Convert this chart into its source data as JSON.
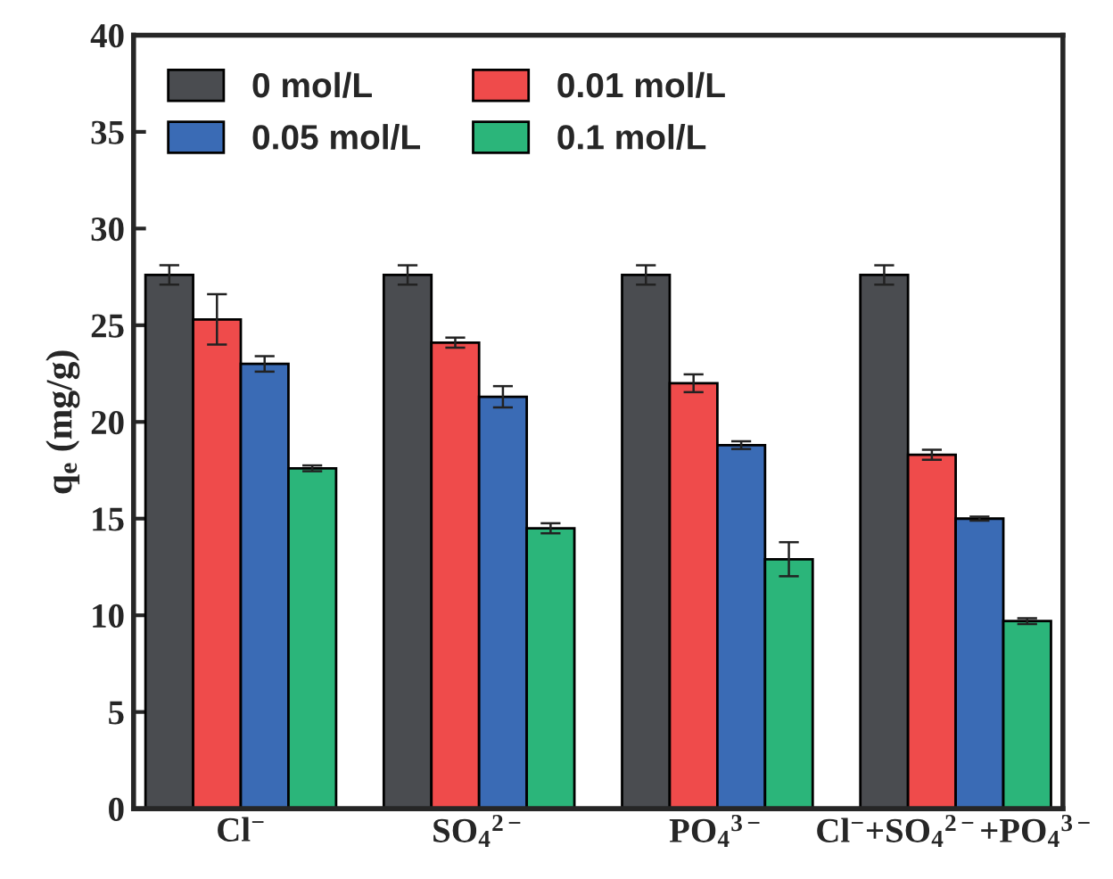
{
  "chart_data": {
    "type": "bar",
    "ylabel": "q$_{e}$ (mg/g)",
    "categories": [
      "Cl$^{−}$",
      "SO$_{4}$$^{2−}$",
      "PO$_{4}$$^{3−}$",
      "Cl$^{−}$+SO$_{4}$$^{2−}$+PO$_{4}$$^{3−}$"
    ],
    "series": [
      {
        "name": "0 mol/L",
        "color": "#4a4c50",
        "values": [
          27.6,
          27.6,
          27.6,
          27.6
        ],
        "errors": [
          0.5,
          0.5,
          0.5,
          0.5
        ]
      },
      {
        "name": "0.01 mol/L",
        "color": "#ef4b4b",
        "values": [
          25.3,
          24.1,
          22.0,
          18.3
        ],
        "errors": [
          1.3,
          0.26,
          0.46,
          0.26
        ]
      },
      {
        "name": "0.05 mol/L",
        "color": "#3a6bb5",
        "values": [
          23.0,
          21.3,
          18.8,
          15.0
        ],
        "errors": [
          0.4,
          0.55,
          0.2,
          0.1
        ]
      },
      {
        "name": "0.1 mol/L",
        "color": "#2bb57a",
        "values": [
          17.6,
          14.5,
          12.9,
          9.7
        ],
        "errors": [
          0.15,
          0.26,
          0.88,
          0.15
        ]
      }
    ],
    "ylim": [
      0,
      40
    ],
    "yticks": [
      0,
      5,
      10,
      15,
      20,
      25,
      30,
      35,
      40
    ],
    "grid": false,
    "legend": "top left"
  }
}
